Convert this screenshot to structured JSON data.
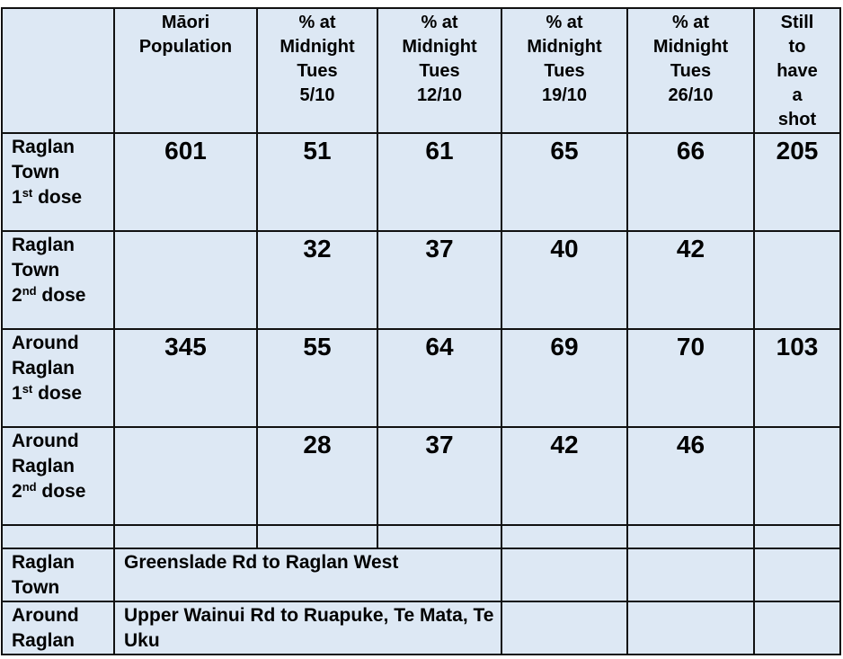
{
  "headers": [
    "",
    "Māori Population",
    "% at Midnight Tues 5/10",
    "% at Midnight Tues 12/10",
    "% at Midnight Tues 19/10",
    "% at Midnight Tues 26/10",
    "Still to have a shot"
  ],
  "header_lines": [
    [],
    [
      "Māori",
      "Population"
    ],
    [
      "% at",
      "Midnight",
      "Tues",
      "5/10"
    ],
    [
      "% at",
      "Midnight",
      "Tues",
      "12/10"
    ],
    [
      "% at",
      "Midnight",
      "Tues",
      "19/10"
    ],
    [
      "% at",
      "Midnight",
      "Tues",
      "26/10"
    ],
    [
      "Still",
      "to",
      "have",
      "a",
      "shot"
    ]
  ],
  "rows": [
    {
      "label": [
        "Raglan",
        "Town",
        "1",
        "st",
        " dose"
      ],
      "population": "601",
      "values": [
        "51",
        "61",
        "65",
        "66"
      ],
      "still": "205"
    },
    {
      "label": [
        "Raglan",
        "Town",
        "2",
        "nd",
        " dose"
      ],
      "population": "",
      "values": [
        "32",
        "37",
        "40",
        "42"
      ],
      "still": ""
    },
    {
      "label": [
        "Around",
        "Raglan",
        "1",
        "st",
        " dose"
      ],
      "population": "345",
      "values": [
        "55",
        "64",
        "69",
        "70"
      ],
      "still": "103"
    },
    {
      "label": [
        "Around",
        "Raglan",
        "2",
        "nd",
        " dose"
      ],
      "population": "",
      "values": [
        "28",
        "37",
        "42",
        "46"
      ],
      "still": ""
    }
  ],
  "areas": [
    {
      "label": [
        "Raglan",
        "Town"
      ],
      "description": "Greenslade Rd to Raglan West"
    },
    {
      "label": [
        "Around",
        "Raglan"
      ],
      "description": "Upper Wainui Rd to Ruapuke, Te Mata, Te Uku"
    }
  ],
  "colors": {
    "cell_background": "#dde8f4",
    "border": "#111111"
  }
}
